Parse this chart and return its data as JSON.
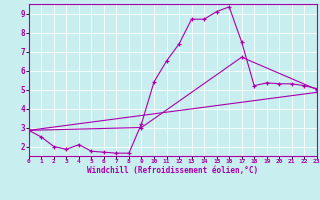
{
  "background_color": "#c8eef0",
  "line_color": "#aa00aa",
  "grid_color": "#ffffff",
  "xlabel": "Windchill (Refroidissement éolien,°C)",
  "xlabel_color": "#aa00aa",
  "tick_color": "#aa00aa",
  "spine_color": "#aa00aa",
  "xlim": [
    0,
    23
  ],
  "ylim": [
    1.5,
    9.5
  ],
  "yticks": [
    2,
    3,
    4,
    5,
    6,
    7,
    8,
    9
  ],
  "xticks": [
    0,
    1,
    2,
    3,
    4,
    5,
    6,
    7,
    8,
    9,
    10,
    11,
    12,
    13,
    14,
    15,
    16,
    17,
    18,
    19,
    20,
    21,
    22,
    23
  ],
  "series1": [
    [
      0,
      2.85
    ],
    [
      1,
      2.5
    ],
    [
      2,
      2.0
    ],
    [
      3,
      1.85
    ],
    [
      4,
      2.1
    ],
    [
      5,
      1.75
    ],
    [
      6,
      1.7
    ],
    [
      7,
      1.65
    ],
    [
      8,
      1.65
    ],
    [
      9,
      3.2
    ],
    [
      10,
      5.4
    ],
    [
      11,
      6.5
    ],
    [
      12,
      7.4
    ],
    [
      13,
      8.7
    ],
    [
      14,
      8.7
    ],
    [
      15,
      9.1
    ],
    [
      16,
      9.35
    ],
    [
      17,
      7.5
    ],
    [
      18,
      5.2
    ],
    [
      19,
      5.35
    ],
    [
      20,
      5.3
    ],
    [
      21,
      5.3
    ],
    [
      22,
      5.2
    ],
    [
      23,
      5.05
    ]
  ],
  "series2": [
    [
      0,
      2.85
    ],
    [
      9,
      3.0
    ],
    [
      17,
      6.7
    ],
    [
      23,
      5.0
    ]
  ],
  "series3": [
    [
      0,
      2.85
    ],
    [
      23,
      4.85
    ]
  ]
}
